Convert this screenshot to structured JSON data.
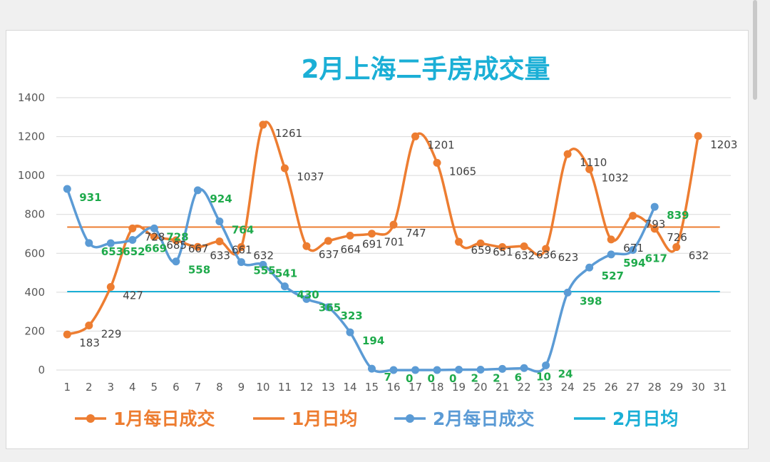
{
  "chart_data": {
    "type": "line",
    "title": "2月上海二手房成交量",
    "xlabel": "",
    "ylabel": "",
    "categories": [
      "1",
      "2",
      "3",
      "4",
      "5",
      "6",
      "7",
      "8",
      "9",
      "10",
      "11",
      "12",
      "13",
      "14",
      "15",
      "16",
      "17",
      "18",
      "19",
      "20",
      "21",
      "22",
      "23",
      "24",
      "25",
      "26",
      "27",
      "28",
      "29",
      "30",
      "31"
    ],
    "ylim": [
      0,
      1400
    ],
    "yticks": [
      0,
      200,
      400,
      600,
      800,
      1000,
      1200,
      1400
    ],
    "grid": true,
    "legend_position": "bottom",
    "series": [
      {
        "name": "1月每日成交",
        "color": "#ED7D31",
        "values": [
          183,
          229,
          427,
          728,
          685,
          667,
          633,
          661,
          632,
          1261,
          1037,
          637,
          664,
          691,
          701,
          747,
          1201,
          1065,
          659,
          651,
          632,
          636,
          623,
          1110,
          1032,
          671,
          793,
          726,
          632,
          1203,
          null
        ],
        "label_color": "#404040"
      },
      {
        "name": "1月日均",
        "color": "#ED7D31",
        "type": "hline",
        "value": 735
      },
      {
        "name": "2月每日成交",
        "color": "#5B9BD5",
        "values": [
          931,
          653,
          652,
          669,
          728,
          558,
          924,
          764,
          555,
          541,
          430,
          365,
          323,
          194,
          7,
          0,
          0,
          0,
          2,
          2,
          6,
          10,
          24,
          398,
          527,
          594,
          617,
          839,
          null,
          null,
          null
        ],
        "label_color": "#1EAA4B"
      },
      {
        "name": "2月日均",
        "color": "#1BAFD6",
        "type": "hline",
        "value": 403
      }
    ]
  }
}
